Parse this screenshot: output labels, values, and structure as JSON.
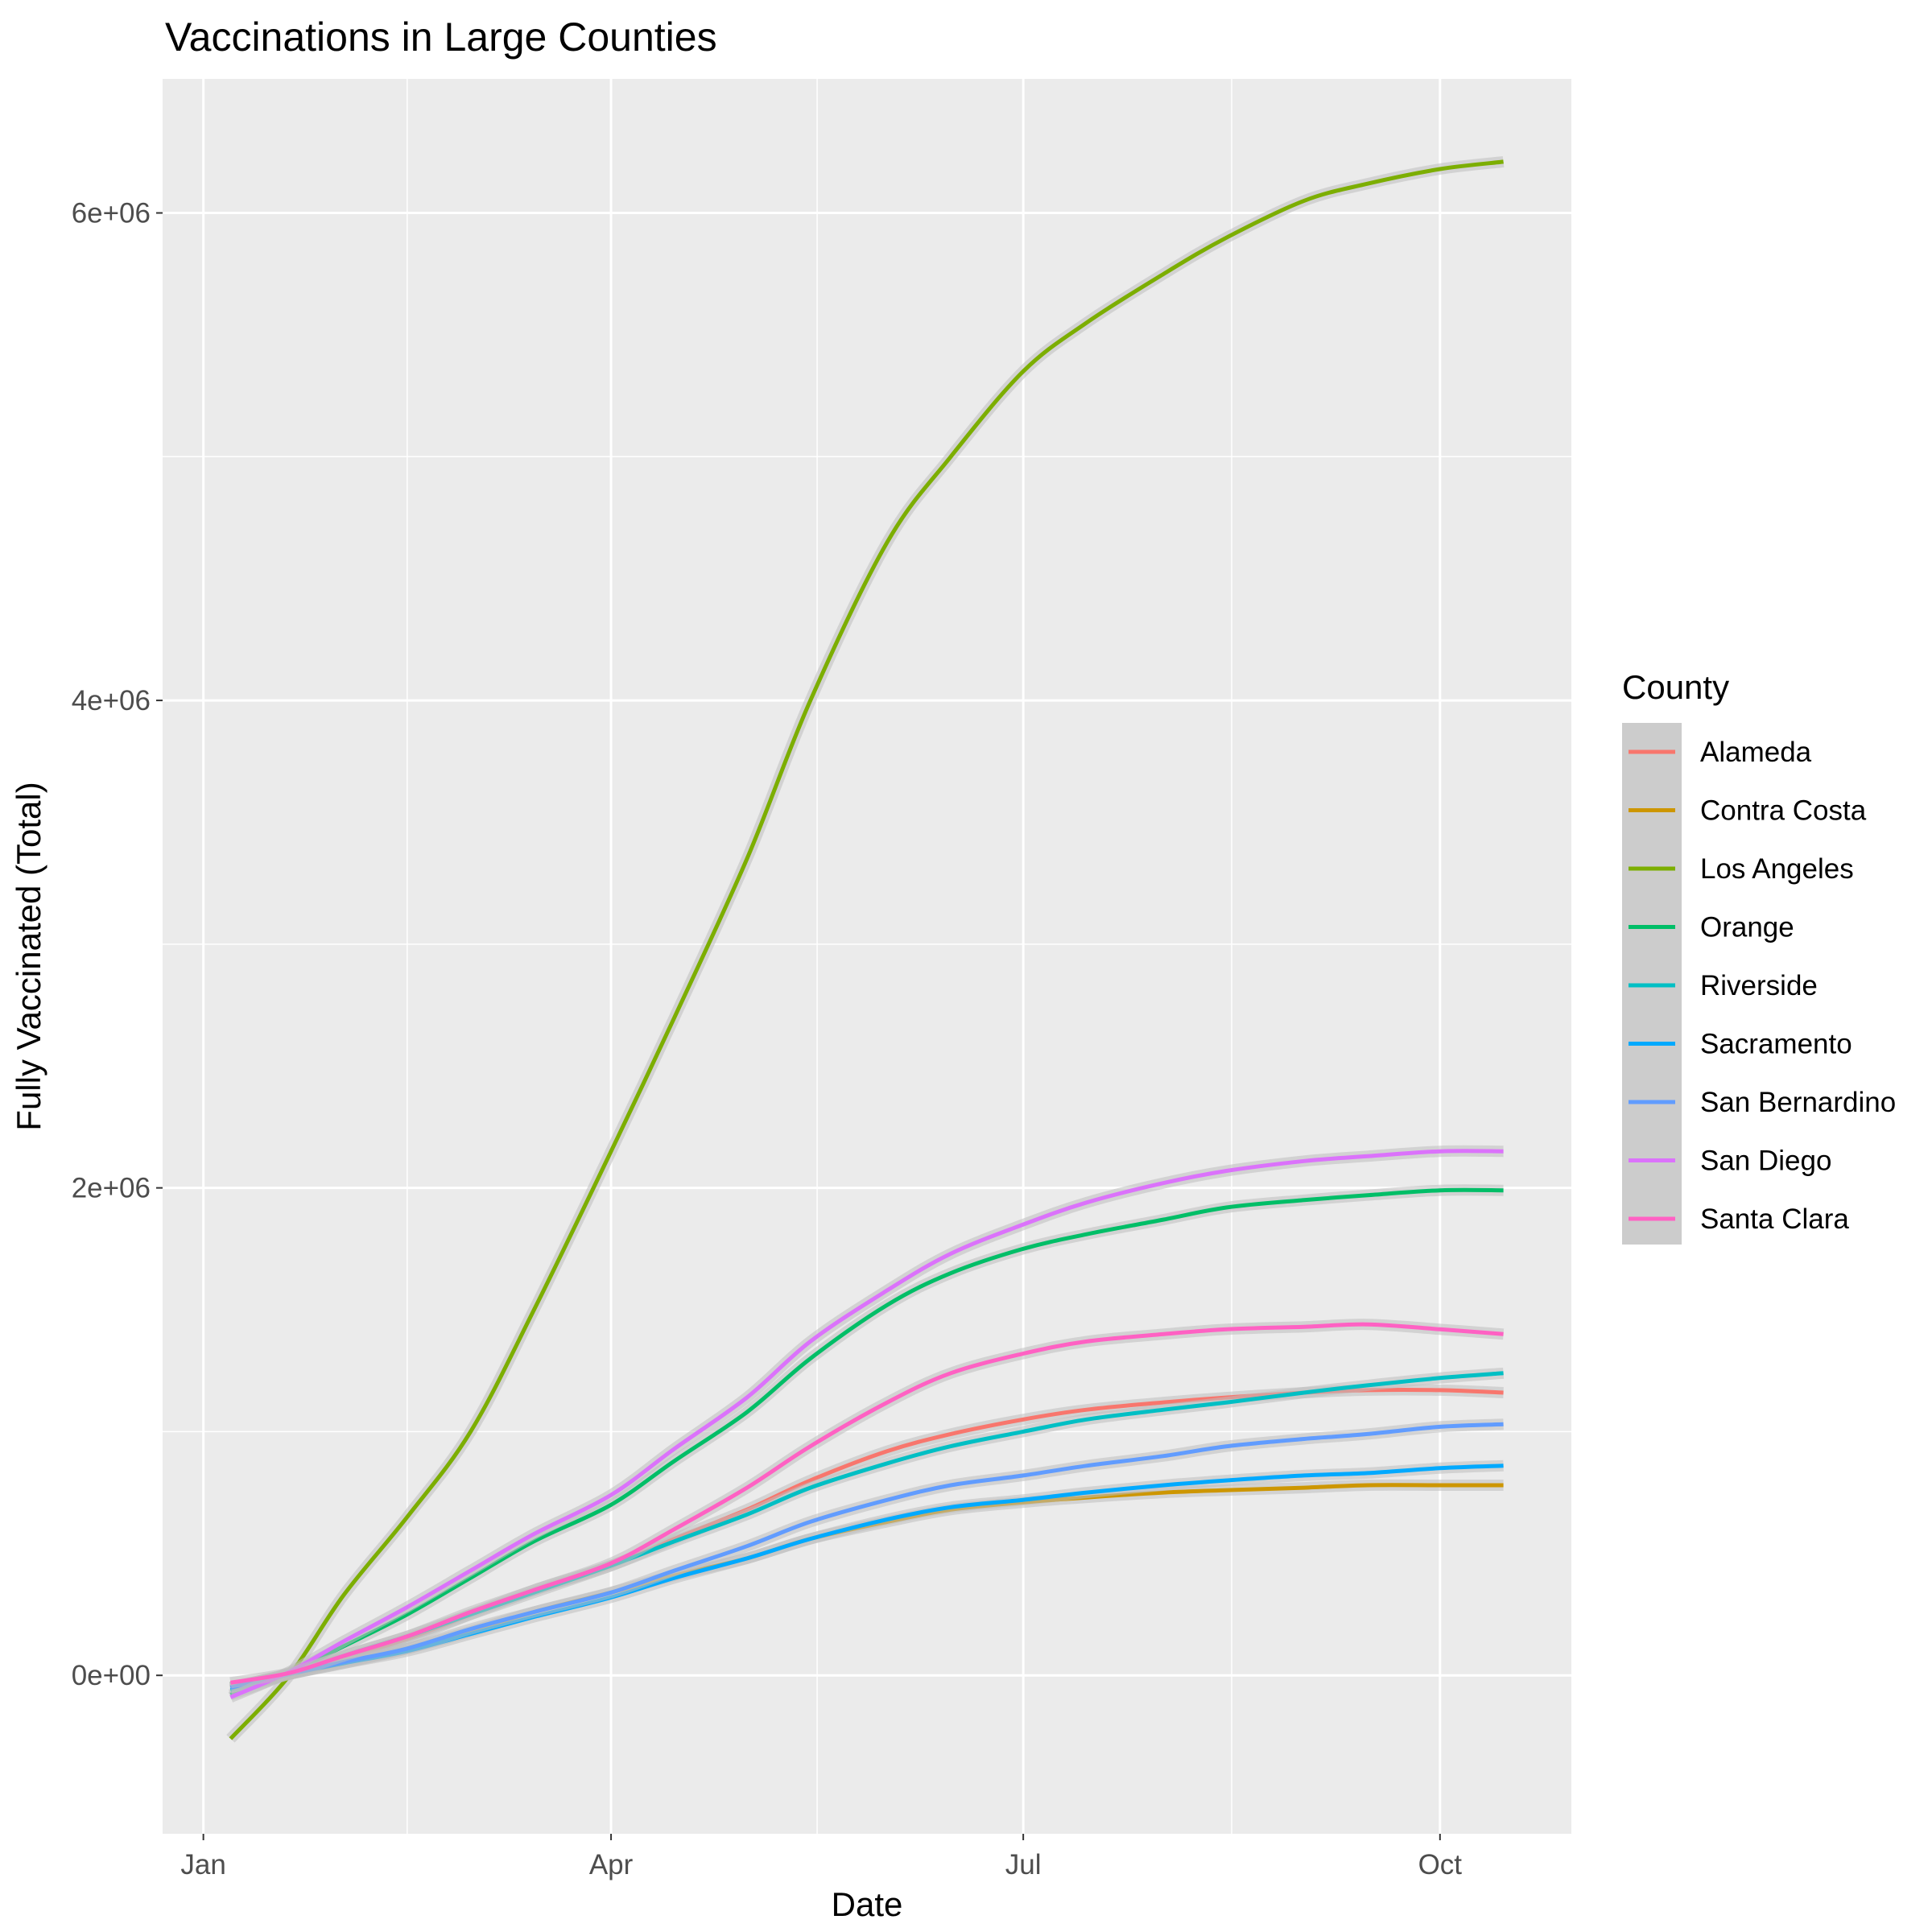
{
  "chart_data": {
    "type": "line",
    "title": "Vaccinations in Large Counties",
    "xlabel": "Date",
    "ylabel": "Fully Vaccinated (Total)",
    "x_ticks": [
      "Jan",
      "Apr",
      "Jul",
      "Oct"
    ],
    "x_tick_dates": [
      "2021-01-01",
      "2021-04-01",
      "2021-07-01",
      "2021-10-01"
    ],
    "y_ticks": [
      "0e+00",
      "2e+06",
      "4e+06",
      "6e+06"
    ],
    "y_tick_values": [
      0,
      2000000,
      4000000,
      6000000
    ],
    "xlim": [
      "2020-12-23",
      "2021-10-30"
    ],
    "ylim": [
      -650000,
      6550000
    ],
    "grid": true,
    "legend_title": "County",
    "legend_position": "right",
    "x": [
      "2021-01-07",
      "2021-01-20",
      "2021-02-01",
      "2021-02-15",
      "2021-03-01",
      "2021-03-15",
      "2021-04-01",
      "2021-04-15",
      "2021-05-01",
      "2021-05-15",
      "2021-06-01",
      "2021-06-15",
      "2021-07-01",
      "2021-07-15",
      "2021-08-01",
      "2021-08-15",
      "2021-09-01",
      "2021-09-15",
      "2021-10-01",
      "2021-10-15"
    ],
    "series": [
      {
        "name": "Alameda",
        "color": "#F8766D",
        "values": [
          -50000,
          5000,
          70000,
          150000,
          250000,
          350000,
          450000,
          560000,
          680000,
          800000,
          920000,
          990000,
          1050000,
          1090000,
          1120000,
          1140000,
          1160000,
          1170000,
          1170000,
          1160000
        ]
      },
      {
        "name": "Contra Costa",
        "color": "#CD9600",
        "values": [
          -50000,
          5000,
          50000,
          110000,
          180000,
          260000,
          340000,
          410000,
          480000,
          560000,
          630000,
          680000,
          710000,
          730000,
          750000,
          760000,
          770000,
          780000,
          780000,
          780000
        ]
      },
      {
        "name": "Los Angeles",
        "color": "#7CAE00",
        "values": [
          -260000,
          0,
          330000,
          650000,
          1000000,
          1500000,
          2150000,
          2700000,
          3350000,
          4000000,
          4650000,
          5000000,
          5350000,
          5550000,
          5750000,
          5900000,
          6050000,
          6120000,
          6180000,
          6210000
        ]
      },
      {
        "name": "Orange",
        "color": "#00BE67",
        "values": [
          -80000,
          10000,
          120000,
          250000,
          400000,
          550000,
          700000,
          880000,
          1080000,
          1300000,
          1520000,
          1650000,
          1750000,
          1810000,
          1870000,
          1920000,
          1950000,
          1970000,
          1990000,
          1990000
        ]
      },
      {
        "name": "Riverside",
        "color": "#00BFC4",
        "values": [
          -60000,
          5000,
          80000,
          160000,
          250000,
          340000,
          450000,
          550000,
          660000,
          770000,
          870000,
          940000,
          1000000,
          1050000,
          1090000,
          1120000,
          1160000,
          1190000,
          1220000,
          1240000
        ]
      },
      {
        "name": "Sacramento",
        "color": "#00A9FF",
        "values": [
          -50000,
          5000,
          50000,
          100000,
          170000,
          240000,
          320000,
          400000,
          480000,
          560000,
          640000,
          690000,
          720000,
          750000,
          780000,
          800000,
          820000,
          830000,
          850000,
          860000
        ]
      },
      {
        "name": "San Bernardino",
        "color": "#619CFF",
        "values": [
          -50000,
          5000,
          55000,
          110000,
          190000,
          260000,
          340000,
          430000,
          530000,
          630000,
          720000,
          780000,
          820000,
          860000,
          900000,
          940000,
          970000,
          990000,
          1020000,
          1030000
        ]
      },
      {
        "name": "San Diego",
        "color": "#DB72FB",
        "values": [
          -90000,
          15000,
          140000,
          280000,
          430000,
          580000,
          740000,
          930000,
          1140000,
          1370000,
          1580000,
          1730000,
          1850000,
          1940000,
          2020000,
          2070000,
          2110000,
          2130000,
          2150000,
          2150000
        ]
      },
      {
        "name": "Santa Clara",
        "color": "#FF61C3",
        "values": [
          -30000,
          10000,
          80000,
          160000,
          260000,
          350000,
          460000,
          600000,
          770000,
          940000,
          1120000,
          1240000,
          1320000,
          1370000,
          1400000,
          1420000,
          1430000,
          1440000,
          1420000,
          1400000
        ]
      }
    ]
  }
}
